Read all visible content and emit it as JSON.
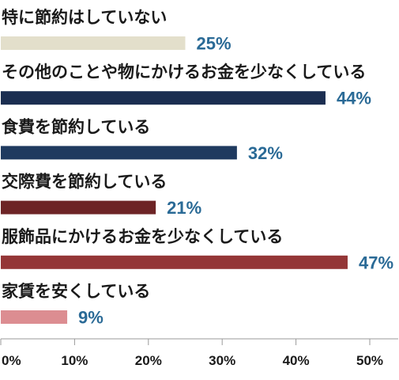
{
  "chart_data": {
    "type": "bar",
    "orientation": "horizontal",
    "categories": [
      "特に節約はしていない",
      "その他のことや物にかけるお金を少なくしている",
      "食費を節約している",
      "交際費を節約している",
      "服飾品にかけるお金を少なくしている",
      "家賃を安くしている"
    ],
    "values": [
      25,
      44,
      32,
      21,
      47,
      9
    ],
    "value_labels": [
      "25%",
      "44%",
      "32%",
      "21%",
      "47%",
      "9%"
    ],
    "colors": [
      "#e3dfcb",
      "#1b2e51",
      "#1f3a5f",
      "#6d2426",
      "#943637",
      "#dc8d91"
    ],
    "value_label_color": "#2a6a96",
    "x_ticks": [
      0,
      10,
      20,
      30,
      40,
      50
    ],
    "x_tick_labels": [
      "0%",
      "10%",
      "20%",
      "30%",
      "40%",
      "50%"
    ],
    "xlim": [
      0,
      50
    ],
    "grid": "x-axis ticks only",
    "legend": "none"
  }
}
